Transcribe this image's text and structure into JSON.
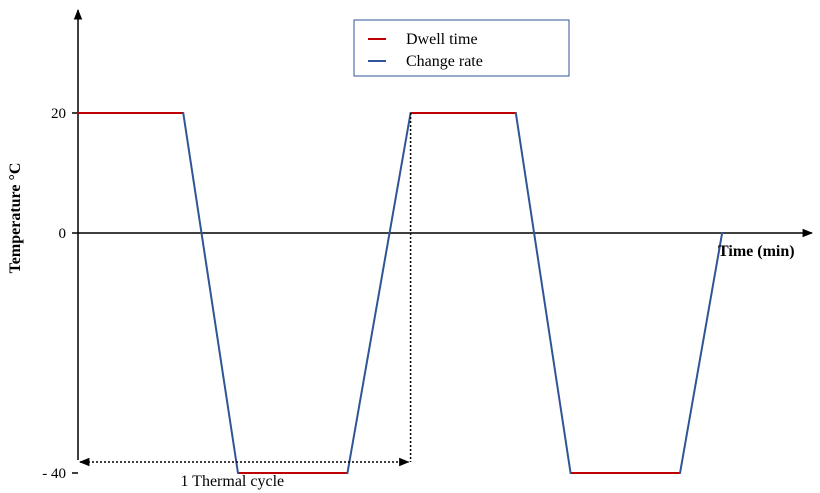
{
  "chart_data": {
    "type": "line",
    "title": "",
    "xlabel": "Time (min)",
    "ylabel": "Temperature °C",
    "y_ticks": [
      {
        "value": 20,
        "label": "20"
      },
      {
        "value": 0,
        "label": "0"
      },
      {
        "value": -40,
        "label": "- 40"
      }
    ],
    "ylim": [
      -40,
      20
    ],
    "grid": false,
    "legend": {
      "position": "top-center",
      "entries": [
        {
          "name": "Dwell time",
          "color": "#c00000"
        },
        {
          "name": "Change rate",
          "color": "#2f5597"
        }
      ]
    },
    "series": [
      {
        "name": "Dwell time",
        "color": "#c00000",
        "segments": [
          [
            [
              0,
              20
            ],
            [
              25,
              20
            ]
          ],
          [
            [
              38,
              -40
            ],
            [
              64,
              -40
            ]
          ],
          [
            [
              79,
              20
            ],
            [
              104,
              20
            ]
          ],
          [
            [
              117,
              -40
            ],
            [
              143,
              -40
            ]
          ]
        ]
      },
      {
        "name": "Change rate",
        "color": "#2f5597",
        "segments": [
          [
            [
              25,
              20
            ],
            [
              38,
              -40
            ]
          ],
          [
            [
              64,
              -40
            ],
            [
              79,
              20
            ]
          ],
          [
            [
              104,
              20
            ],
            [
              117,
              -40
            ]
          ],
          [
            [
              143,
              -40
            ],
            [
              153,
              0
            ]
          ]
        ]
      }
    ],
    "annotations": [
      {
        "text": "1  Thermal cycle",
        "x_start": 0,
        "x_end": 79
      }
    ]
  }
}
